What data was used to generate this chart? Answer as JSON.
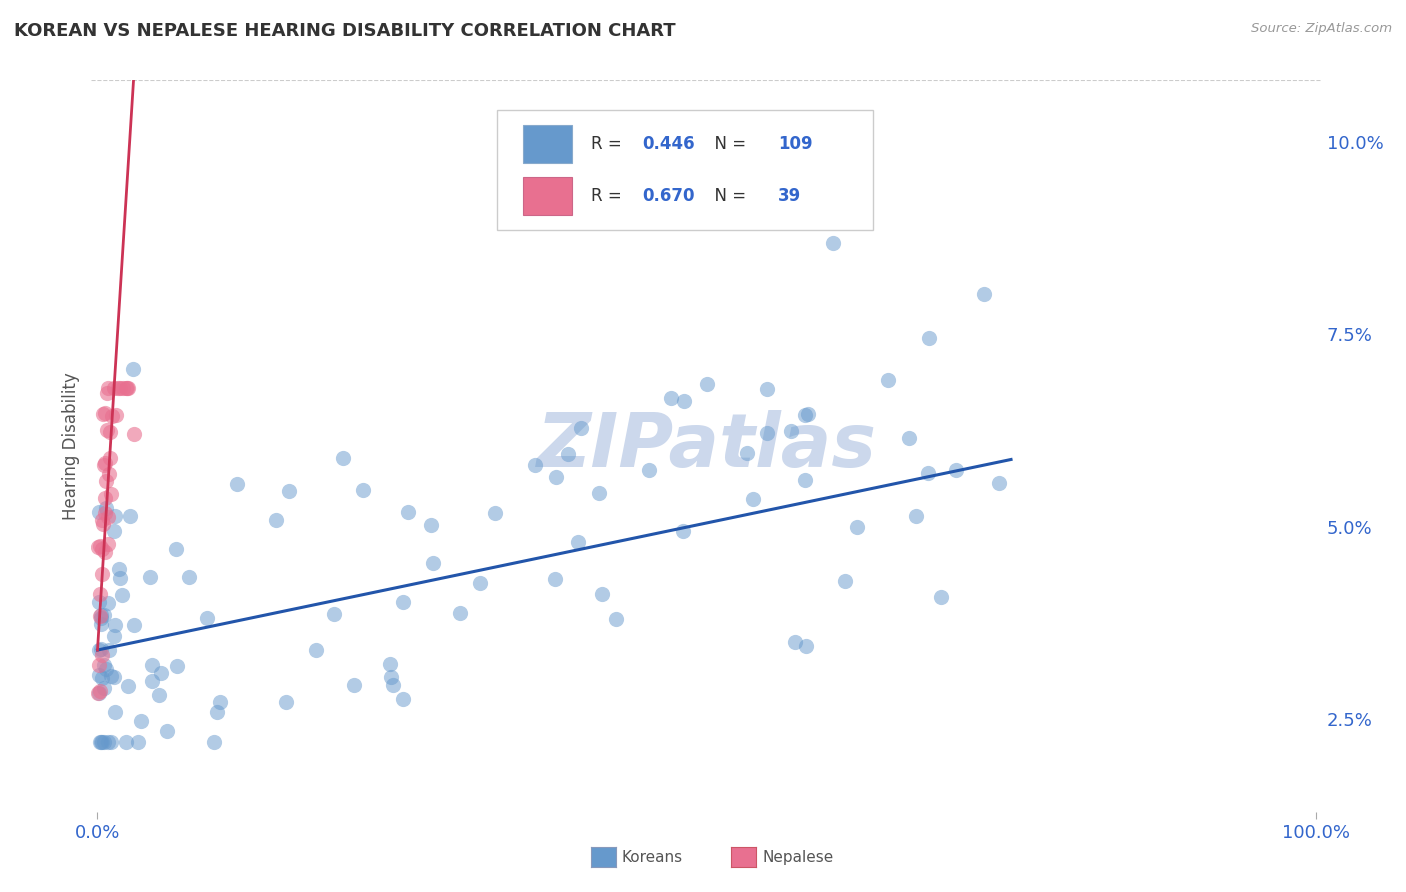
{
  "title": "KOREAN VS NEPALESE HEARING DISABILITY CORRELATION CHART",
  "source_text": "Source: ZipAtlas.com",
  "ylabel": "Hearing Disability",
  "xlim": [
    -0.005,
    1.005
  ],
  "ylim": [
    0.013,
    0.108
  ],
  "yticks": [
    0.025,
    0.05,
    0.075,
    0.1
  ],
  "ytick_labels": [
    "2.5%",
    "5.0%",
    "7.5%",
    "10.0%"
  ],
  "xtick_labels": [
    "0.0%",
    "100.0%"
  ],
  "korean_R": "0.446",
  "korean_N": "109",
  "nepalese_R": "0.670",
  "nepalese_N": "39",
  "korean_dot_color": "#6699cc",
  "nepalese_dot_color": "#e87090",
  "trend_korean_color": "#2255aa",
  "trend_nepalese_color": "#cc3355",
  "trend_nepalese_dashed_color": "#e87090",
  "axis_label_color": "#3366cc",
  "title_color": "#333333",
  "grid_color": "#cccccc",
  "watermark_color": "#ccd8ec",
  "background_color": "#ffffff",
  "legend_box_color": "#cccccc",
  "source_color": "#999999"
}
